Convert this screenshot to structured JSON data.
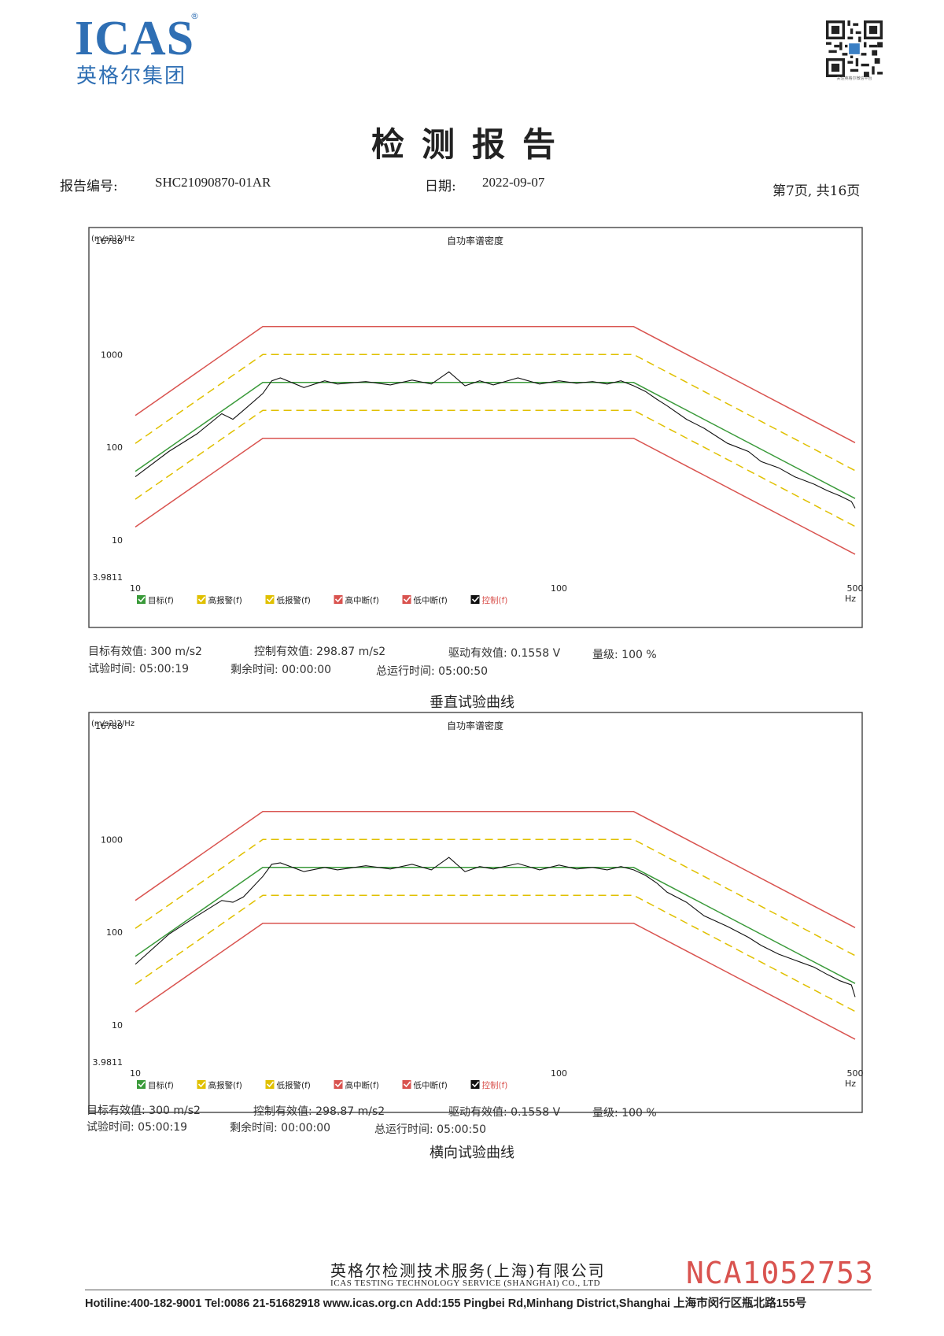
{
  "header": {
    "logo_text": "ICAS",
    "logo_registered": "®",
    "logo_subtitle": "英格尔集团",
    "qr_caption": "关注英格尔微信平台"
  },
  "title": "检测报告",
  "report": {
    "number_label": "报告编号:",
    "number": "SHC21090870-01AR",
    "date_label": "日期:",
    "date": "2022-09-07",
    "page": "第7页, 共16页"
  },
  "chart_data": [
    {
      "type": "line",
      "title": "自功率谱密度",
      "ylabel": "(m/s2)2/Hz",
      "xlabel": "Hz",
      "xscale": "log",
      "yscale": "log",
      "xlim": [
        10,
        500
      ],
      "ylim": [
        3.9811,
        16788
      ],
      "x_tick_labels": [
        "10",
        "100",
        "500"
      ],
      "y_tick_labels": [
        "16788",
        "1000",
        "100",
        "10",
        "3.9811"
      ],
      "legend_placement": "bottom",
      "legend": [
        "目标(f)",
        "高报警(f)",
        "低报警(f)",
        "高中断(f)",
        "低中断(f)",
        "控制(f)"
      ],
      "series": [
        {
          "name": "目标(f)",
          "color": "#3a9a3a",
          "style": "solid",
          "x": [
            10,
            20,
            150,
            500
          ],
          "y": [
            55,
            500,
            500,
            28
          ]
        },
        {
          "name": "高报警(f)",
          "color": "#e0c000",
          "style": "dashed",
          "x": [
            10,
            20,
            150,
            500
          ],
          "y": [
            110,
            1000,
            1000,
            56
          ]
        },
        {
          "name": "低报警(f)",
          "color": "#e0c000",
          "style": "dashed",
          "x": [
            10,
            20,
            150,
            500
          ],
          "y": [
            27.5,
            250,
            250,
            14
          ]
        },
        {
          "name": "高中断(f)",
          "color": "#d9534f",
          "style": "solid",
          "x": [
            10,
            20,
            150,
            500
          ],
          "y": [
            220,
            2000,
            2000,
            112
          ]
        },
        {
          "name": "低中断(f)",
          "color": "#d9534f",
          "style": "solid",
          "x": [
            10,
            20,
            150,
            500
          ],
          "y": [
            13.8,
            125,
            125,
            7
          ]
        },
        {
          "name": "控制(f)",
          "color": "#111111",
          "style": "solid",
          "x": [
            10,
            12,
            14,
            16,
            17,
            18,
            20,
            21,
            22,
            25,
            28,
            30,
            35,
            40,
            45,
            50,
            55,
            60,
            65,
            70,
            80,
            90,
            100,
            110,
            120,
            130,
            140,
            150,
            160,
            170,
            180,
            200,
            220,
            250,
            280,
            300,
            330,
            360,
            400,
            430,
            460,
            490,
            500
          ],
          "y": [
            48,
            90,
            140,
            230,
            200,
            250,
            380,
            520,
            560,
            440,
            520,
            480,
            510,
            470,
            530,
            480,
            650,
            460,
            520,
            470,
            560,
            480,
            520,
            490,
            510,
            480,
            520,
            460,
            400,
            330,
            280,
            200,
            160,
            110,
            90,
            70,
            60,
            48,
            40,
            34,
            30,
            26,
            22
          ]
        }
      ],
      "stats": {
        "target_rms": "目标有效值: 300 m/s2",
        "control_rms": "控制有效值: 298.87 m/s2",
        "drive_rms": "驱动有效值: 0.1558 V",
        "level": "量级: 100 %",
        "test_time": "试验时间: 05:00:19",
        "remaining_time": "剩余时间: 00:00:00",
        "total_time": "总运行时间: 05:00:50"
      },
      "caption": "垂直试验曲线"
    },
    {
      "type": "line",
      "title": "自功率谱密度",
      "ylabel": "(m/s2)2/Hz",
      "xlabel": "Hz",
      "xscale": "log",
      "yscale": "log",
      "xlim": [
        10,
        500
      ],
      "ylim": [
        3.9811,
        16788
      ],
      "x_tick_labels": [
        "10",
        "100",
        "500"
      ],
      "y_tick_labels": [
        "16788",
        "1000",
        "100",
        "10",
        "3.9811"
      ],
      "legend_placement": "bottom",
      "legend": [
        "目标(f)",
        "高报警(f)",
        "低报警(f)",
        "高中断(f)",
        "低中断(f)",
        "控制(f)"
      ],
      "series": [
        {
          "name": "目标(f)",
          "color": "#3a9a3a",
          "style": "solid",
          "x": [
            10,
            20,
            150,
            500
          ],
          "y": [
            55,
            500,
            500,
            28
          ]
        },
        {
          "name": "高报警(f)",
          "color": "#e0c000",
          "style": "dashed",
          "x": [
            10,
            20,
            150,
            500
          ],
          "y": [
            110,
            1000,
            1000,
            56
          ]
        },
        {
          "name": "低报警(f)",
          "color": "#e0c000",
          "style": "dashed",
          "x": [
            10,
            20,
            150,
            500
          ],
          "y": [
            27.5,
            250,
            250,
            14
          ]
        },
        {
          "name": "高中断(f)",
          "color": "#d9534f",
          "style": "solid",
          "x": [
            10,
            20,
            150,
            500
          ],
          "y": [
            220,
            2000,
            2000,
            112
          ]
        },
        {
          "name": "低中断(f)",
          "color": "#d9534f",
          "style": "solid",
          "x": [
            10,
            20,
            150,
            500
          ],
          "y": [
            13.8,
            125,
            125,
            7
          ]
        },
        {
          "name": "控制(f)",
          "color": "#111111",
          "style": "solid",
          "x": [
            10,
            12,
            14,
            16,
            17,
            18,
            20,
            21,
            22,
            25,
            28,
            30,
            35,
            40,
            45,
            50,
            55,
            60,
            65,
            70,
            80,
            90,
            100,
            110,
            120,
            130,
            140,
            150,
            160,
            170,
            180,
            200,
            220,
            250,
            280,
            300,
            330,
            360,
            400,
            430,
            460,
            490,
            500
          ],
          "y": [
            45,
            95,
            150,
            220,
            210,
            240,
            400,
            540,
            560,
            450,
            500,
            470,
            520,
            480,
            540,
            470,
            640,
            450,
            510,
            480,
            550,
            470,
            530,
            480,
            500,
            470,
            510,
            470,
            410,
            340,
            270,
            210,
            150,
            115,
            88,
            72,
            58,
            50,
            42,
            35,
            30,
            27,
            20
          ]
        }
      ],
      "stats": {
        "target_rms": "目标有效值: 300 m/s2",
        "control_rms": "控制有效值: 298.87 m/s2",
        "drive_rms": "驱动有效值: 0.1558 V",
        "level": "量级: 100 %",
        "test_time": "试验时间: 05:00:19",
        "remaining_time": "剩余时间: 00:00:00",
        "total_time": "总运行时间: 05:00:50"
      },
      "caption": "横向试验曲线"
    }
  ],
  "footer": {
    "company_cn": "英格尔检测技术服务(上海)有限公司",
    "company_en": "ICAS TESTING TECHNOLOGY SERVICE (SHANGHAI) CO., LTD",
    "serial": "NCA1052753",
    "contact": "Hotiline:400-182-9001  Tel:0086 21-51682918  www.icas.org.cn   Add:155 Pingbei Rd,Minhang District,Shanghai 上海市闵行区瓶北路155号"
  }
}
